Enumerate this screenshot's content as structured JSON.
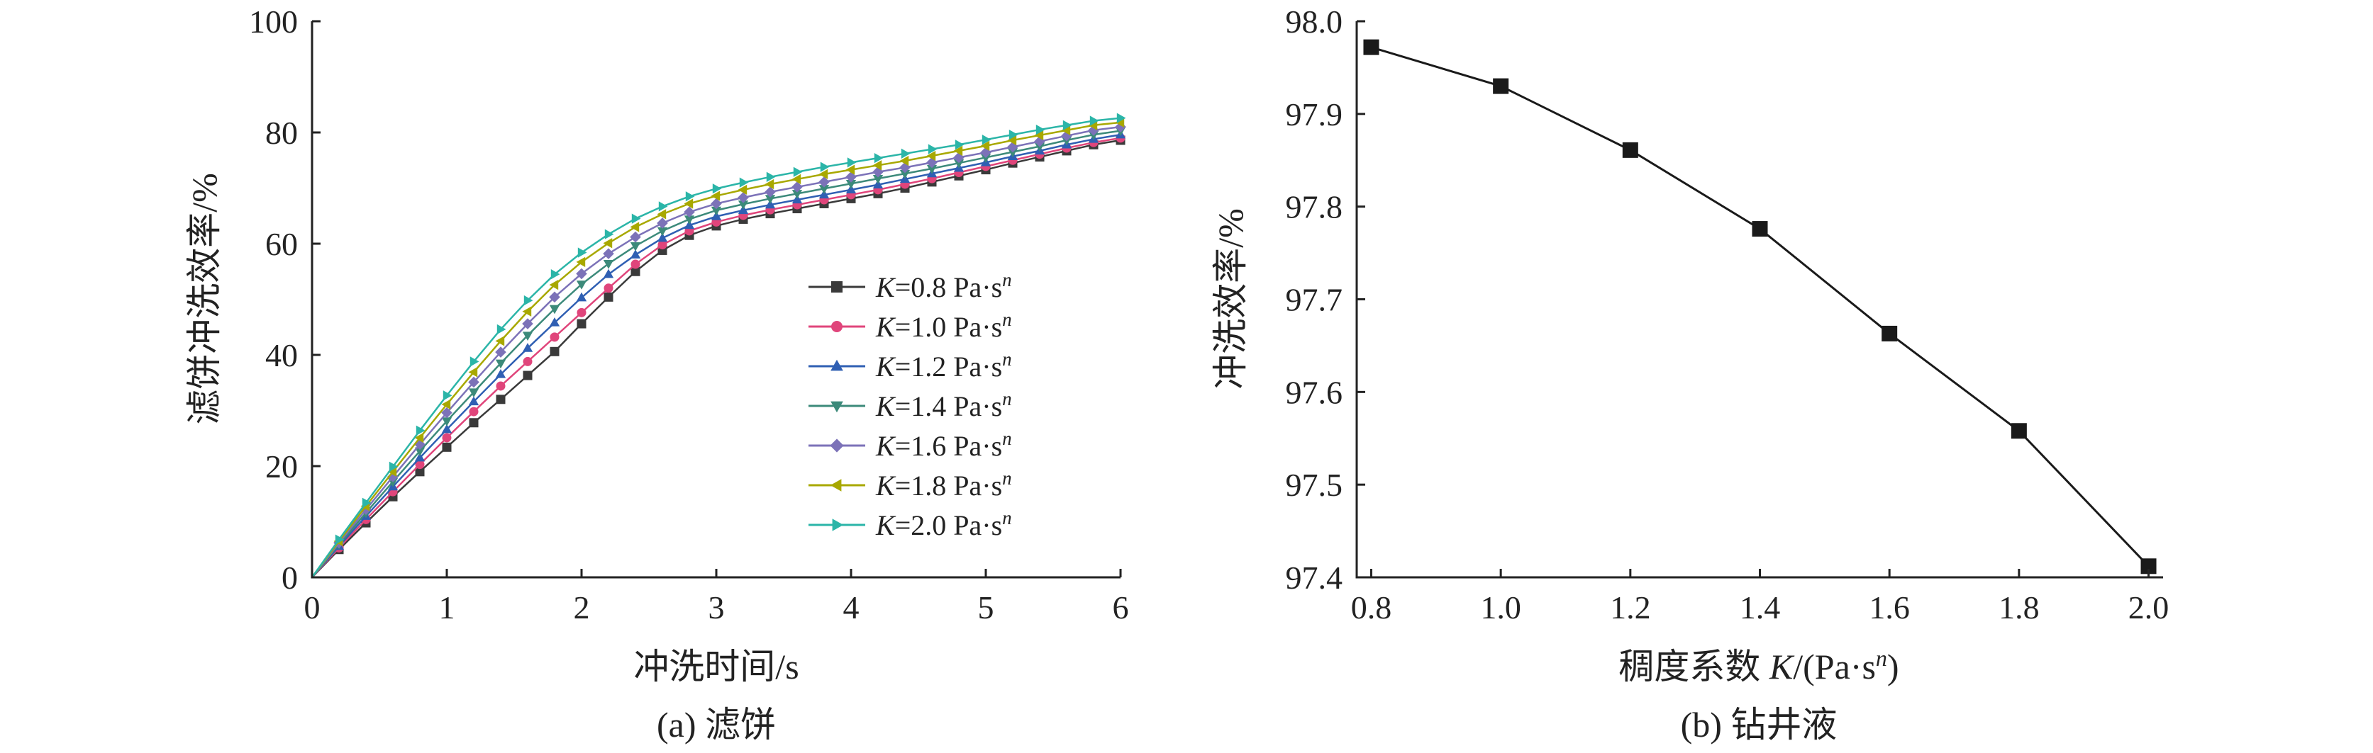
{
  "chart_data": [
    {
      "type": "line",
      "caption": "(a) 滤饼",
      "xlabel": "冲洗时间/s",
      "ylabel": "滤饼冲洗效率/%",
      "xlim": [
        0,
        6
      ],
      "ylim": [
        0,
        100
      ],
      "xticks": [
        0,
        1,
        2,
        3,
        4,
        5,
        6
      ],
      "yticks": [
        0,
        20,
        40,
        60,
        80,
        100
      ],
      "legend_position": "center-right",
      "x": [
        0,
        0.2,
        0.4,
        0.6,
        0.8,
        1.0,
        1.2,
        1.4,
        1.6,
        1.8,
        2.0,
        2.2,
        2.4,
        2.6,
        2.8,
        3.0,
        3.2,
        3.4,
        3.6,
        3.8,
        4.0,
        4.2,
        4.4,
        4.6,
        4.8,
        5.0,
        5.2,
        5.4,
        5.6,
        5.8,
        6.0
      ],
      "series": [
        {
          "name": "K=0.8 Pa·sⁿ",
          "label_prefix": "K",
          "label_rest": "=0.8 Pa·s",
          "label_sup": "n",
          "color": "#3a3a3a",
          "marker": "square",
          "values": [
            0,
            5.0,
            9.8,
            14.5,
            19.0,
            23.4,
            27.8,
            32.0,
            36.3,
            40.6,
            45.6,
            50.4,
            55.0,
            58.8,
            61.5,
            63.2,
            64.4,
            65.4,
            66.3,
            67.2,
            68.1,
            69.0,
            70.0,
            71.1,
            72.2,
            73.3,
            74.5,
            75.6,
            76.7,
            77.8,
            78.6
          ]
        },
        {
          "name": "K=1.0 Pa·sⁿ",
          "label_prefix": "K",
          "label_rest": "=1.0 Pa·s",
          "label_sup": "n",
          "color": "#e0457b",
          "marker": "circle",
          "values": [
            0,
            5.3,
            10.4,
            15.4,
            20.3,
            25.1,
            29.8,
            34.4,
            38.8,
            43.2,
            47.6,
            52.0,
            56.3,
            59.8,
            62.3,
            63.9,
            65.1,
            66.1,
            67.0,
            67.9,
            68.8,
            69.7,
            70.7,
            71.7,
            72.8,
            73.9,
            75.0,
            76.1,
            77.2,
            78.2,
            79.0
          ]
        },
        {
          "name": "K=1.2 Pa·sⁿ",
          "label_prefix": "K",
          "label_rest": "=1.2 Pa·s",
          "label_sup": "n",
          "color": "#2f5fb3",
          "marker": "triangle-up",
          "values": [
            0,
            5.6,
            11.0,
            16.3,
            21.5,
            26.6,
            31.6,
            36.5,
            41.2,
            45.8,
            50.3,
            54.5,
            58.0,
            61.0,
            63.3,
            64.9,
            66.0,
            67.0,
            67.9,
            68.8,
            69.7,
            70.6,
            71.6,
            72.6,
            73.6,
            74.6,
            75.7,
            76.7,
            77.8,
            78.8,
            79.6
          ]
        },
        {
          "name": "K=1.4 Pa·sⁿ",
          "label_prefix": "K",
          "label_rest": "=1.4 Pa·s",
          "label_sup": "n",
          "color": "#3c8a7a",
          "marker": "triangle-down",
          "values": [
            0,
            5.9,
            11.6,
            17.2,
            22.7,
            28.1,
            33.3,
            38.5,
            43.5,
            48.3,
            52.7,
            56.4,
            59.6,
            62.3,
            64.4,
            66.0,
            67.1,
            68.1,
            69.0,
            69.9,
            70.8,
            71.7,
            72.6,
            73.5,
            74.5,
            75.5,
            76.5,
            77.5,
            78.6,
            79.6,
            80.3
          ]
        },
        {
          "name": "K=1.6 Pa·sⁿ",
          "label_prefix": "K",
          "label_rest": "=1.6 Pa·s",
          "label_sup": "n",
          "color": "#7c72b8",
          "marker": "diamond",
          "values": [
            0,
            6.2,
            12.2,
            18.1,
            23.9,
            29.6,
            35.1,
            40.5,
            45.6,
            50.4,
            54.6,
            58.2,
            61.2,
            63.7,
            65.7,
            67.2,
            68.3,
            69.3,
            70.2,
            71.1,
            72.0,
            72.9,
            73.7,
            74.6,
            75.5,
            76.4,
            77.4,
            78.4,
            79.4,
            80.4,
            81.0
          ]
        },
        {
          "name": "K=1.8 Pa·sⁿ",
          "label_prefix": "K",
          "label_rest": "=1.8 Pa·s",
          "label_sup": "n",
          "color": "#a8a800",
          "marker": "triangle-left",
          "values": [
            0,
            6.5,
            12.8,
            19.0,
            25.1,
            31.1,
            36.9,
            42.5,
            47.8,
            52.6,
            56.7,
            60.1,
            63.0,
            65.3,
            67.2,
            68.6,
            69.7,
            70.7,
            71.6,
            72.5,
            73.3,
            74.1,
            74.9,
            75.8,
            76.7,
            77.6,
            78.6,
            79.5,
            80.4,
            81.3,
            81.8
          ]
        },
        {
          "name": "K=2.0 Pa·sⁿ",
          "label_prefix": "K",
          "label_rest": "=2.0 Pa·s",
          "label_sup": "n",
          "color": "#2bb5a8",
          "marker": "triangle-right",
          "values": [
            0,
            6.8,
            13.4,
            19.9,
            26.4,
            32.7,
            38.8,
            44.6,
            49.8,
            54.5,
            58.4,
            61.7,
            64.5,
            66.7,
            68.5,
            69.9,
            71.0,
            72.0,
            72.9,
            73.8,
            74.6,
            75.4,
            76.2,
            77.0,
            77.8,
            78.7,
            79.6,
            80.5,
            81.3,
            82.1,
            82.6
          ]
        }
      ]
    },
    {
      "type": "line",
      "caption": "(b) 钻井液",
      "xlabel_prefix": "稠度系数 ",
      "xlabel_italic": "K",
      "xlabel_rest": "/(Pa·s",
      "xlabel_sup": "n",
      "xlabel_close": ")",
      "ylabel": "冲洗效率/%",
      "xlim": [
        0.8,
        2.0
      ],
      "ylim": [
        97.4,
        98.0
      ],
      "xticks": [
        "0.8",
        "1.0",
        "1.2",
        "1.4",
        "1.6",
        "1.8",
        "2.0"
      ],
      "yticks": [
        "97.4",
        "97.5",
        "97.6",
        "97.7",
        "97.8",
        "97.9",
        "98.0"
      ],
      "series": [
        {
          "color": "#1a1a1a",
          "marker": "square",
          "x": [
            0.8,
            1.0,
            1.2,
            1.4,
            1.6,
            1.8,
            2.0
          ],
          "values": [
            97.972,
            97.93,
            97.861,
            97.776,
            97.663,
            97.558,
            97.412
          ]
        }
      ]
    }
  ]
}
